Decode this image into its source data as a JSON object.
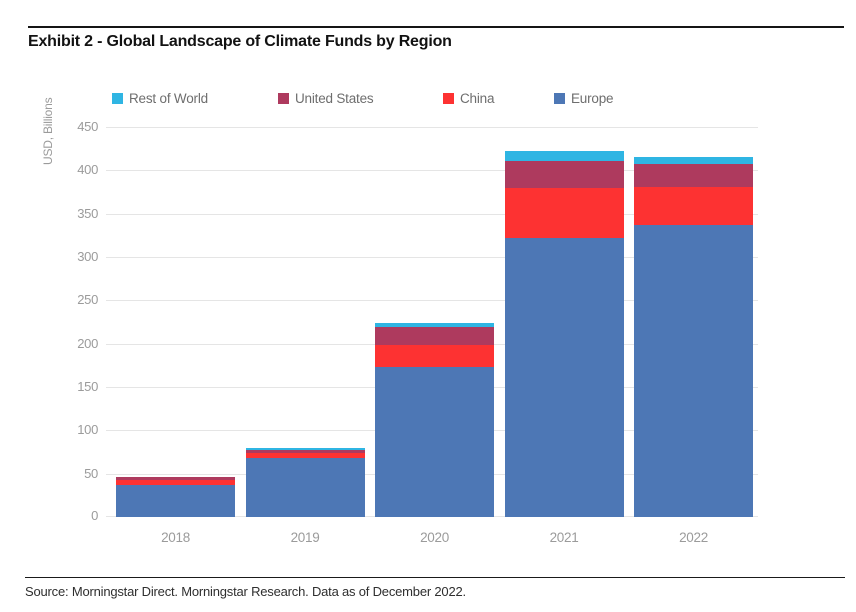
{
  "title": "Exhibit 2 - Global Landscape of Climate Funds by Region",
  "source": "Source: Morningstar Direct. Morningstar Research. Data as of December 2022.",
  "colors": {
    "europe": "#4d77b5",
    "china": "#fd3232",
    "united_states": "#ae3a5e",
    "rest_of_world": "#2fb5e3",
    "gridline": "#e5e5e5",
    "axis_text": "#9b9b9b",
    "legend_text": "#6e6e6e",
    "rule": "#151515"
  },
  "legend": {
    "items": [
      {
        "label": "Rest of World",
        "color": "#2fb5e3"
      },
      {
        "label": "United States",
        "color": "#ae3a5e"
      },
      {
        "label": "China",
        "color": "#fd3232"
      },
      {
        "label": "Europe",
        "color": "#4d77b5"
      }
    ]
  },
  "chart_data": {
    "type": "bar",
    "stacked": true,
    "title": "Exhibit 2 - Global Landscape of Climate Funds by Region",
    "ylabel": "USD, Billions",
    "xlabel": "",
    "categories": [
      "2018",
      "2019",
      "2020",
      "2021",
      "2022"
    ],
    "series": [
      {
        "name": "Europe",
        "color": "#4d77b5",
        "values": [
          37,
          68,
          173,
          322,
          337
        ]
      },
      {
        "name": "China",
        "color": "#fd3232",
        "values": [
          6,
          6,
          25,
          58,
          44
        ]
      },
      {
        "name": "United States",
        "color": "#ae3a5e",
        "values": [
          3,
          3,
          21,
          31,
          26
        ]
      },
      {
        "name": "Rest of World",
        "color": "#2fb5e3",
        "values": [
          0,
          3,
          5,
          11,
          8
        ]
      }
    ],
    "totals": [
      46,
      80,
      224,
      422,
      415
    ],
    "ylim": [
      0,
      450
    ],
    "yticks": [
      0,
      50,
      100,
      150,
      200,
      250,
      300,
      350,
      400,
      450
    ],
    "grid": true,
    "legend_position": "top",
    "stack_order_bottom_to_top": [
      "Europe",
      "China",
      "United States",
      "Rest of World"
    ]
  }
}
